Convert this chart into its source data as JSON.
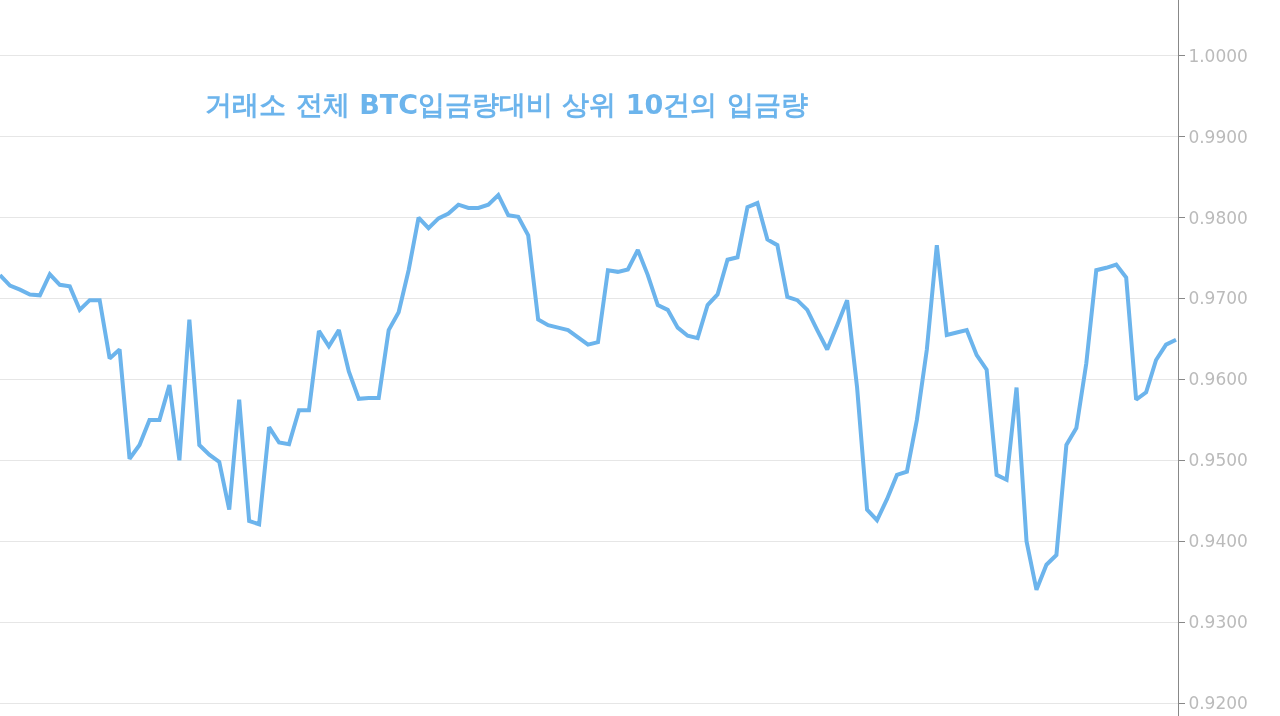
{
  "chart_data": {
    "type": "line",
    "title": "거래소 전체 BTC입금량대비 상위 10건의 입금량",
    "categories": [
      null,
      null,
      null,
      null,
      null,
      null,
      null,
      null,
      null,
      null,
      null,
      null,
      null,
      null,
      null,
      null,
      null,
      null,
      null,
      null,
      null,
      null,
      null,
      null,
      null,
      null,
      null,
      null,
      null,
      null,
      null,
      null,
      null,
      null,
      null,
      null,
      null,
      null,
      null,
      null,
      null,
      null,
      null,
      null,
      null,
      null,
      null,
      null,
      null,
      null,
      null,
      null,
      null,
      null,
      null,
      null,
      null,
      null,
      null,
      null,
      null,
      null,
      null,
      null,
      null,
      null,
      null,
      null,
      null,
      null,
      null,
      null,
      null,
      null,
      null,
      null,
      null,
      null,
      null,
      null,
      null,
      null,
      null,
      null,
      null,
      null,
      null,
      null,
      null,
      null,
      null,
      null,
      null,
      null,
      null,
      null,
      null,
      null,
      null,
      null,
      null,
      null,
      null,
      null,
      null,
      null,
      null,
      null,
      null,
      null,
      null,
      null,
      null,
      null,
      null,
      null,
      null,
      null,
      null
    ],
    "series": [
      {
        "color": "#6cb4ec",
        "values": [
          0.9729,
          0.9716,
          0.9711,
          0.9705,
          0.9704,
          0.973,
          0.9717,
          0.9715,
          0.9686,
          0.9698,
          0.9698,
          0.9626,
          0.9637,
          0.9502,
          0.9519,
          0.955,
          0.955,
          0.9593,
          0.95,
          0.9674,
          0.9519,
          0.9507,
          0.9498,
          0.9439,
          0.9575,
          0.9425,
          0.9421,
          0.9541,
          0.9522,
          0.952,
          0.9562,
          0.9562,
          0.966,
          0.9641,
          0.9661,
          0.961,
          0.9576,
          0.9577,
          0.9577,
          0.9661,
          0.9683,
          0.9735,
          0.98,
          0.9787,
          0.9799,
          0.9805,
          0.9816,
          0.9812,
          0.9812,
          0.9816,
          0.9828,
          0.9803,
          0.9801,
          0.9778,
          0.9674,
          0.9667,
          0.9664,
          0.9661,
          0.9652,
          0.9643,
          0.9646,
          0.9735,
          0.9733,
          0.9736,
          0.976,
          0.9729,
          0.9692,
          0.9686,
          0.9664,
          0.9654,
          0.9651,
          0.9692,
          0.9705,
          0.9748,
          0.9751,
          0.9813,
          0.9818,
          0.9773,
          0.9766,
          0.9702,
          0.9698,
          0.9686,
          0.9661,
          0.9637,
          0.9667,
          0.9698,
          0.959,
          0.9439,
          0.9426,
          0.9452,
          0.9482,
          0.9486,
          0.955,
          0.9637,
          0.9766,
          0.9655,
          0.9658,
          0.9661,
          0.963,
          0.9612,
          0.9482,
          0.9476,
          0.959,
          0.94,
          0.934,
          0.9371,
          0.9383,
          0.9519,
          0.954,
          0.962,
          0.9735,
          0.9738,
          0.9742,
          0.9726,
          0.9575,
          0.9584,
          0.9624,
          0.9643,
          0.9649
        ]
      }
    ],
    "ylim": [
      0.9184,
      1.0069
    ],
    "yticks": [
      {
        "value": 0.92,
        "label": "0.9200"
      },
      {
        "value": 0.93,
        "label": "0.9300"
      },
      {
        "value": 0.94,
        "label": "0.9400"
      },
      {
        "value": 0.95,
        "label": "0.9500"
      },
      {
        "value": 0.96,
        "label": "0.9600"
      },
      {
        "value": 0.97,
        "label": "0.9700"
      },
      {
        "value": 0.98,
        "label": "0.9800"
      },
      {
        "value": 0.99,
        "label": "0.9900"
      },
      {
        "value": 1.0,
        "label": "1.0000"
      }
    ],
    "tick_labels": "y",
    "grid": "y",
    "marker": "none",
    "line_style": "solid"
  }
}
